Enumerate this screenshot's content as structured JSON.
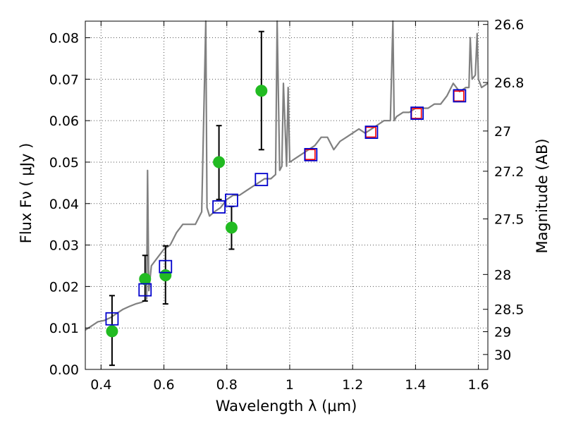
{
  "chart_data": {
    "type": "scatter",
    "xlabel": "Wavelength  λ (μm)",
    "ylabel": "Flux  Fν  ( μJy )",
    "y2label": "Magnitude (AB)",
    "xlim": [
      0.35,
      1.63
    ],
    "ylim": [
      0.0,
      0.084
    ],
    "grid": true,
    "x_ticks": [
      0.4,
      0.6,
      0.8,
      1.0,
      1.2,
      1.4,
      1.6
    ],
    "x_tick_labels": [
      "0.4",
      "0.6",
      "0.8",
      "1",
      "1.2",
      "1.4",
      "1.6"
    ],
    "y_ticks": [
      0.0,
      0.01,
      0.02,
      0.03,
      0.04,
      0.05,
      0.06,
      0.07,
      0.08
    ],
    "y_tick_labels": [
      "0.00",
      "0.01",
      "0.02",
      "0.03",
      "0.04",
      "0.05",
      "0.06",
      "0.07",
      "0.08"
    ],
    "y2_ticks": [
      {
        "label": "26.6",
        "flux": 0.0832
      },
      {
        "label": "26.8",
        "flux": 0.0692
      },
      {
        "label": "27",
        "flux": 0.0575
      },
      {
        "label": "27.2",
        "flux": 0.0478
      },
      {
        "label": "27.5",
        "flux": 0.0363
      },
      {
        "label": "28",
        "flux": 0.0229
      },
      {
        "label": "28.5",
        "flux": 0.0145
      },
      {
        "label": "29",
        "flux": 0.0091
      },
      {
        "label": "30",
        "flux": 0.0036
      }
    ],
    "colors": {
      "spectrum": "#808080",
      "observed": "#22bb22",
      "model_blue": "#0000cc",
      "model_red": "#ff0000",
      "grid": "#555555"
    },
    "series": [
      {
        "kind": "spectrum",
        "x": [
          0.35,
          0.37,
          0.39,
          0.41,
          0.43,
          0.45,
          0.47,
          0.49,
          0.51,
          0.53,
          0.545,
          0.548,
          0.552,
          0.56,
          0.58,
          0.6,
          0.62,
          0.64,
          0.66,
          0.68,
          0.7,
          0.72,
          0.733,
          0.737,
          0.745,
          0.76,
          0.78,
          0.8,
          0.82,
          0.84,
          0.86,
          0.88,
          0.9,
          0.92,
          0.94,
          0.955,
          0.96,
          0.968,
          0.975,
          0.98,
          0.99,
          0.995,
          1.0,
          1.02,
          1.04,
          1.06,
          1.08,
          1.1,
          1.12,
          1.14,
          1.16,
          1.18,
          1.2,
          1.22,
          1.24,
          1.26,
          1.28,
          1.3,
          1.32,
          1.328,
          1.332,
          1.34,
          1.36,
          1.38,
          1.4,
          1.42,
          1.44,
          1.46,
          1.48,
          1.5,
          1.52,
          1.54,
          1.56,
          1.57,
          1.574,
          1.58,
          1.59,
          1.596,
          1.6,
          1.61,
          1.63
        ],
        "y": [
          0.0095,
          0.0105,
          0.0115,
          0.0118,
          0.0125,
          0.0135,
          0.0145,
          0.0152,
          0.0158,
          0.0162,
          0.017,
          0.048,
          0.019,
          0.025,
          0.027,
          0.029,
          0.03,
          0.033,
          0.035,
          0.035,
          0.035,
          0.038,
          0.084,
          0.039,
          0.037,
          0.038,
          0.039,
          0.041,
          0.042,
          0.042,
          0.043,
          0.044,
          0.045,
          0.046,
          0.046,
          0.047,
          0.084,
          0.048,
          0.049,
          0.069,
          0.049,
          0.068,
          0.05,
          0.051,
          0.052,
          0.053,
          0.054,
          0.056,
          0.056,
          0.053,
          0.055,
          0.056,
          0.057,
          0.058,
          0.057,
          0.058,
          0.059,
          0.06,
          0.06,
          0.084,
          0.06,
          0.061,
          0.062,
          0.062,
          0.063,
          0.063,
          0.063,
          0.064,
          0.064,
          0.066,
          0.069,
          0.067,
          0.068,
          0.068,
          0.08,
          0.07,
          0.071,
          0.081,
          0.07,
          0.068,
          0.069
        ]
      },
      {
        "kind": "observed",
        "x": [
          0.435,
          0.54,
          0.605,
          0.775,
          0.815,
          0.91
        ],
        "y": [
          0.0092,
          0.0218,
          0.0227,
          0.05,
          0.0342,
          0.0672
        ],
        "yerr_low": [
          0.001,
          0.0165,
          0.0158,
          0.041,
          0.029,
          0.053
        ],
        "yerr_high": [
          0.0178,
          0.0275,
          0.0298,
          0.0588,
          0.0393,
          0.0815
        ]
      },
      {
        "kind": "model_blue",
        "x": [
          0.435,
          0.54,
          0.605,
          0.775,
          0.815,
          0.91,
          1.067,
          1.26,
          1.405,
          1.54
        ],
        "y": [
          0.0122,
          0.0192,
          0.0248,
          0.0392,
          0.0408,
          0.0458,
          0.0518,
          0.0572,
          0.0618,
          0.066
        ]
      },
      {
        "kind": "model_red",
        "x": [
          1.067,
          1.26,
          1.405,
          1.54
        ],
        "y": [
          0.052,
          0.0574,
          0.0619,
          0.0661
        ]
      }
    ]
  }
}
